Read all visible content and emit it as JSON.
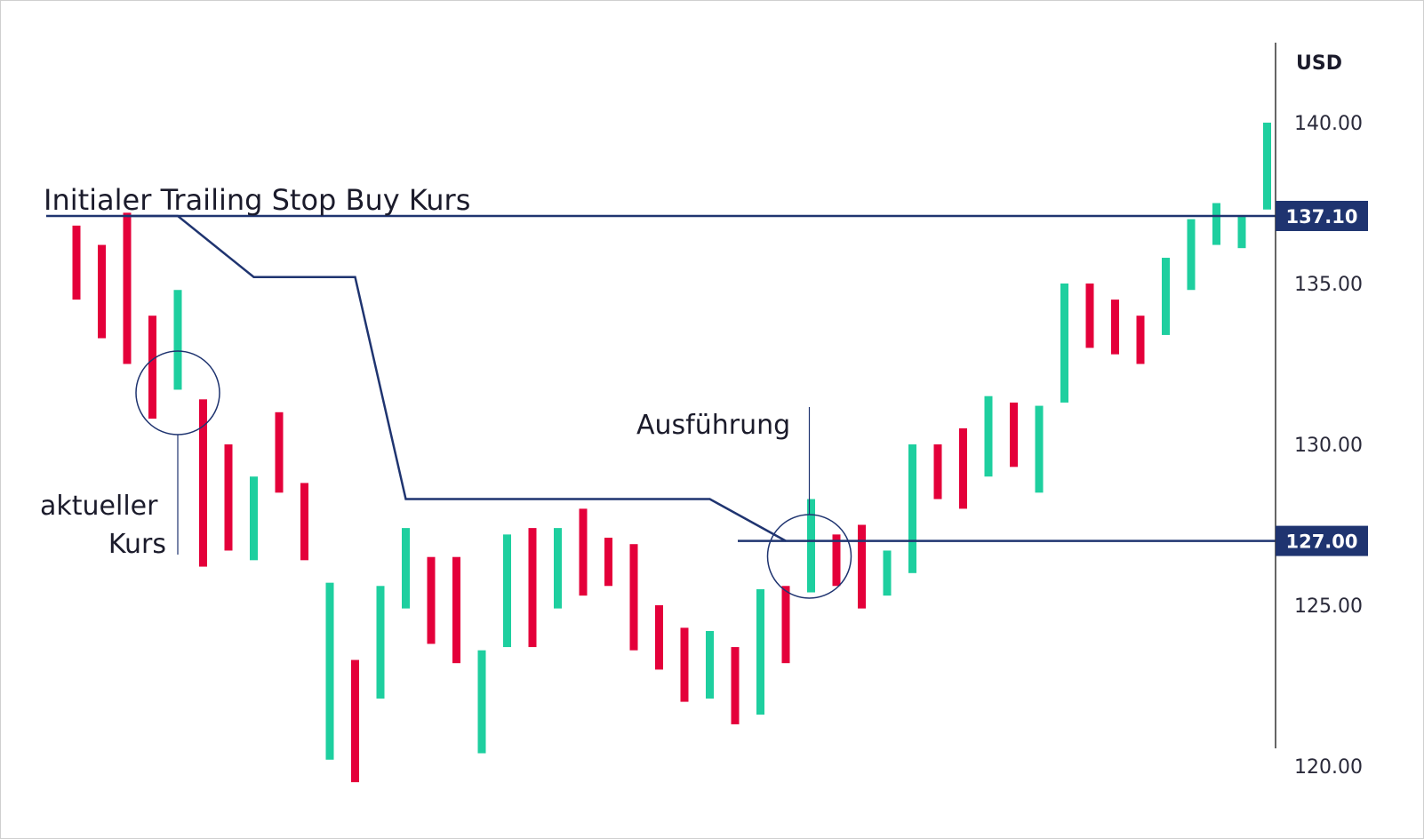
{
  "colors": {
    "up": "#1ecf9f",
    "down": "#e4003a",
    "navy": "#1f3470",
    "axis": "#333333"
  },
  "chart_data": {
    "type": "bar",
    "unit": "USD",
    "ylim": [
      120,
      140
    ],
    "y_ticks": [
      "140.00",
      "135.00",
      "130.00",
      "125.00",
      "120.00"
    ],
    "annotations": {
      "initial_stop": "Initialer Trailing Stop Buy Kurs",
      "current_price": "aktueller Kurs",
      "execution": "Ausführung"
    },
    "levels": [
      {
        "label": "137.10",
        "value": 137.1
      },
      {
        "label": "127.00",
        "value": 127.0
      }
    ],
    "bars": [
      {
        "low": 134.5,
        "high": 136.8,
        "dir": "down"
      },
      {
        "low": 133.3,
        "high": 136.2,
        "dir": "down"
      },
      {
        "low": 132.5,
        "high": 137.2,
        "dir": "down"
      },
      {
        "low": 130.8,
        "high": 134.0,
        "dir": "down"
      },
      {
        "low": 131.7,
        "high": 134.8,
        "dir": "up"
      },
      {
        "low": 126.2,
        "high": 131.4,
        "dir": "down"
      },
      {
        "low": 126.7,
        "high": 130.0,
        "dir": "down"
      },
      {
        "low": 126.4,
        "high": 129.0,
        "dir": "up"
      },
      {
        "low": 128.5,
        "high": 131.0,
        "dir": "down"
      },
      {
        "low": 126.4,
        "high": 128.8,
        "dir": "down"
      },
      {
        "low": 120.2,
        "high": 125.7,
        "dir": "up"
      },
      {
        "low": 119.5,
        "high": 123.3,
        "dir": "down"
      },
      {
        "low": 122.1,
        "high": 125.6,
        "dir": "up"
      },
      {
        "low": 124.9,
        "high": 127.4,
        "dir": "up"
      },
      {
        "low": 123.8,
        "high": 126.5,
        "dir": "down"
      },
      {
        "low": 123.2,
        "high": 126.5,
        "dir": "down"
      },
      {
        "low": 120.4,
        "high": 123.6,
        "dir": "up"
      },
      {
        "low": 123.7,
        "high": 127.2,
        "dir": "up"
      },
      {
        "low": 123.7,
        "high": 127.4,
        "dir": "down"
      },
      {
        "low": 124.9,
        "high": 127.4,
        "dir": "up"
      },
      {
        "low": 125.3,
        "high": 128.0,
        "dir": "down"
      },
      {
        "low": 125.6,
        "high": 127.1,
        "dir": "down"
      },
      {
        "low": 123.6,
        "high": 126.9,
        "dir": "down"
      },
      {
        "low": 123.0,
        "high": 125.0,
        "dir": "down"
      },
      {
        "low": 122.0,
        "high": 124.3,
        "dir": "down"
      },
      {
        "low": 122.1,
        "high": 124.2,
        "dir": "up"
      },
      {
        "low": 121.3,
        "high": 123.7,
        "dir": "down"
      },
      {
        "low": 121.6,
        "high": 125.5,
        "dir": "up"
      },
      {
        "low": 123.2,
        "high": 125.6,
        "dir": "down"
      },
      {
        "low": 125.4,
        "high": 128.3,
        "dir": "up"
      },
      {
        "low": 125.6,
        "high": 127.2,
        "dir": "down"
      },
      {
        "low": 124.9,
        "high": 127.5,
        "dir": "down"
      },
      {
        "low": 125.3,
        "high": 126.7,
        "dir": "up"
      },
      {
        "low": 126.0,
        "high": 130.0,
        "dir": "up"
      },
      {
        "low": 128.3,
        "high": 130.0,
        "dir": "down"
      },
      {
        "low": 128.0,
        "high": 130.5,
        "dir": "down"
      },
      {
        "low": 129.0,
        "high": 131.5,
        "dir": "up"
      },
      {
        "low": 129.3,
        "high": 131.3,
        "dir": "down"
      },
      {
        "low": 128.5,
        "high": 131.2,
        "dir": "up"
      },
      {
        "low": 131.3,
        "high": 135.0,
        "dir": "up"
      },
      {
        "low": 133.0,
        "high": 135.0,
        "dir": "down"
      },
      {
        "low": 132.8,
        "high": 134.5,
        "dir": "down"
      },
      {
        "low": 132.5,
        "high": 134.0,
        "dir": "down"
      },
      {
        "low": 133.4,
        "high": 135.8,
        "dir": "up"
      },
      {
        "low": 134.8,
        "high": 137.0,
        "dir": "up"
      },
      {
        "low": 136.2,
        "high": 137.5,
        "dir": "up"
      },
      {
        "low": 136.1,
        "high": 137.1,
        "dir": "up"
      },
      {
        "low": 137.3,
        "high": 140.0,
        "dir": "up"
      }
    ],
    "trailing_stop": [
      {
        "bar": 2,
        "value": 137.1
      },
      {
        "bar": 4,
        "value": 137.1
      },
      {
        "bar": 7,
        "value": 135.2
      },
      {
        "bar": 11,
        "value": 135.2
      },
      {
        "bar": 13,
        "value": 128.3
      },
      {
        "bar": 25,
        "value": 128.3
      },
      {
        "bar": 28,
        "value": 127.0
      }
    ]
  }
}
